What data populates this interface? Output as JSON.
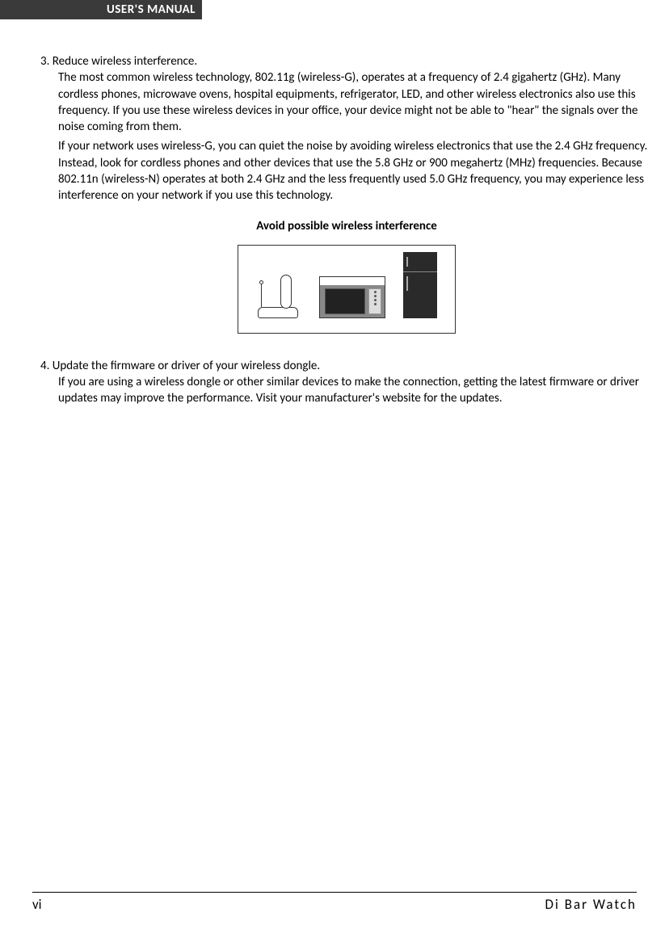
{
  "header": {
    "label": "USER'S MANUAL"
  },
  "section3": {
    "head": "3. Reduce wireless interference.",
    "para1": "The most common wireless technology, 802.11g (wireless-G), operates at a frequency of 2.4 gigahertz (GHz). Many cordless phones, microwave ovens, hospital equipments, refrigerator, LED, and other wireless electronics also use this frequency. If you use these wireless devices in your office, your device might not be able to \"hear\" the signals over the noise coming from them.",
    "para2": "If your network uses wireless-G, you can quiet the noise by avoiding wireless electronics that use the 2.4 GHz frequency. Instead, look for cordless phones and other devices that use the 5.8 GHz or 900 megahertz (MHz) frequencies. Because 802.11n (wireless-N) operates at both 2.4 GHz and the less frequently used 5.0 GHz frequency, you may experience less interference on your network if you use this technology."
  },
  "figure": {
    "caption": "Avoid possible wireless interference"
  },
  "section4": {
    "head": "4. Update the firmware or driver of your wireless dongle.",
    "para1": "If you are using a wireless dongle or other similar devices to make the connection, getting the latest firmware or driver updates may improve the performance. Visit your manufacturer's website for the updates."
  },
  "footer": {
    "page": "vi",
    "product": "Di  Bar  Watch"
  },
  "colors": {
    "header_bg": "#3a3a3a",
    "text": "#000000",
    "page_bg": "#ffffff"
  }
}
